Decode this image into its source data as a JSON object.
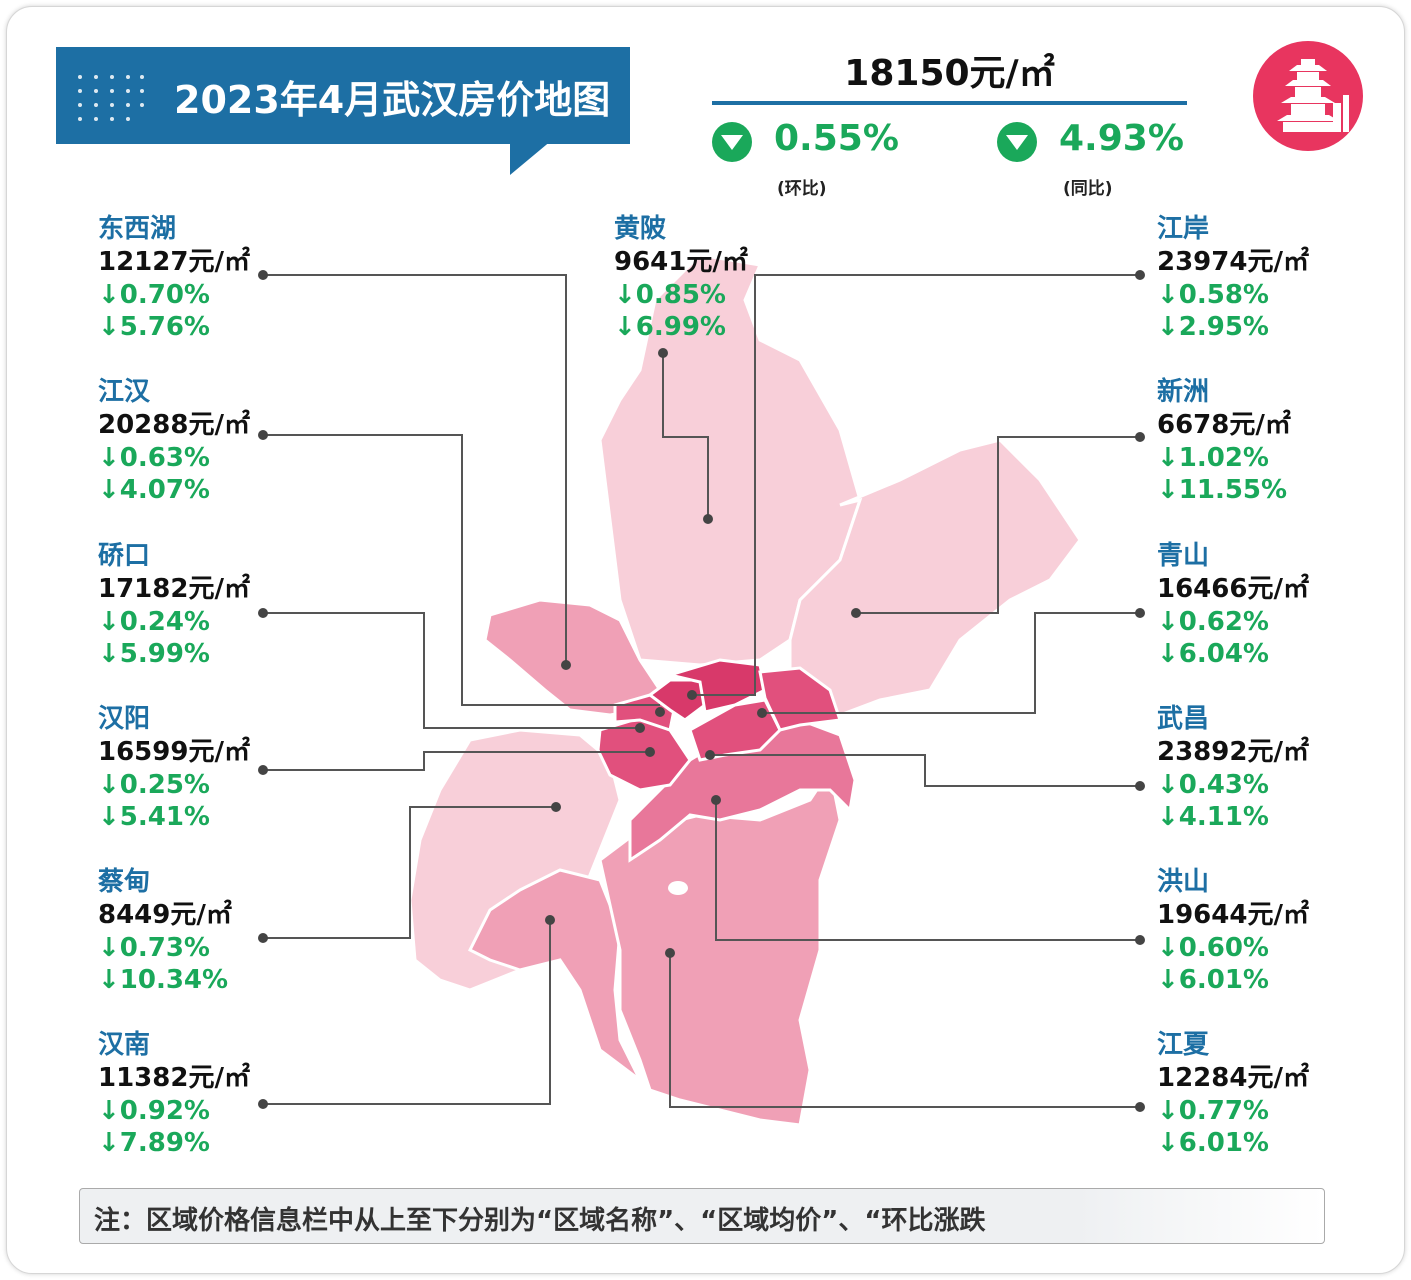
{
  "title": "2023年4月武汉房价地图",
  "city": {
    "avg_price": "18150元/㎡",
    "mom": {
      "value": "0.55%",
      "caption": "(环比)",
      "direction": "down"
    },
    "yoy": {
      "value": "4.93%",
      "caption": "(同比)",
      "direction": "down"
    }
  },
  "colors": {
    "brand_blue": "#1d6fa4",
    "decline_green": "#1aa85a",
    "map_light": "#f8cfd9",
    "map_mid": "#f0a0b6",
    "map_dark": "#e1507d",
    "logo_red": "#e8355f"
  },
  "icons": {
    "logo": "yellow-crane-tower-icon",
    "change": "down-triangle-icon"
  },
  "districts_left": [
    {
      "name": "东西湖",
      "price": "12127元/㎡",
      "mom": "↓0.70%",
      "yoy": "↓5.76%"
    },
    {
      "name": "江汉",
      "price": "20288元/㎡",
      "mom": "↓0.63%",
      "yoy": "↓4.07%"
    },
    {
      "name": "硚口",
      "price": "17182元/㎡",
      "mom": "↓0.24%",
      "yoy": "↓5.99%"
    },
    {
      "name": "汉阳",
      "price": "16599元/㎡",
      "mom": "↓0.25%",
      "yoy": "↓5.41%"
    },
    {
      "name": "蔡甸",
      "price": "8449元/㎡",
      "mom": "↓0.73%",
      "yoy": "↓10.34%"
    },
    {
      "name": "汉南",
      "price": "11382元/㎡",
      "mom": "↓0.92%",
      "yoy": "↓7.89%"
    }
  ],
  "district_top": {
    "name": "黄陂",
    "price": "9641元/㎡",
    "mom": "↓0.85%",
    "yoy": "↓6.99%"
  },
  "districts_right": [
    {
      "name": "江岸",
      "price": "23974元/㎡",
      "mom": "↓0.58%",
      "yoy": "↓2.95%"
    },
    {
      "name": "新洲",
      "price": "6678元/㎡",
      "mom": "↓1.02%",
      "yoy": "↓11.55%"
    },
    {
      "name": "青山",
      "price": "16466元/㎡",
      "mom": "↓0.62%",
      "yoy": "↓6.04%"
    },
    {
      "name": "武昌",
      "price": "23892元/㎡",
      "mom": "↓0.43%",
      "yoy": "↓4.11%"
    },
    {
      "name": "洪山",
      "price": "19644元/㎡",
      "mom": "↓0.60%",
      "yoy": "↓6.01%"
    },
    {
      "name": "江夏",
      "price": "12284元/㎡",
      "mom": "↓0.77%",
      "yoy": "↓6.01%"
    }
  ],
  "note": "注：区域价格信息栏中从上至下分别为“区域名称”、“区域均价”、“环比涨跌"
}
